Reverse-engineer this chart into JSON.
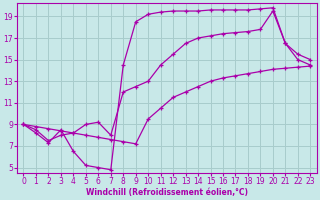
{
  "xlabel": "Windchill (Refroidissement éolien,°C)",
  "background_color": "#c8e8e8",
  "grid_color": "#a8cccc",
  "line_color": "#aa00aa",
  "xlim": [
    -0.5,
    23.5
  ],
  "ylim": [
    4.5,
    20.2
  ],
  "xticks": [
    0,
    1,
    2,
    3,
    4,
    5,
    6,
    7,
    8,
    9,
    10,
    11,
    12,
    13,
    14,
    15,
    16,
    17,
    18,
    19,
    20,
    21,
    22,
    23
  ],
  "yticks": [
    5,
    7,
    9,
    11,
    13,
    15,
    17,
    19
  ],
  "series1_x": [
    0,
    1,
    2,
    3,
    4,
    5,
    6,
    7,
    8,
    9,
    10,
    11,
    12,
    13,
    14,
    15,
    16,
    17,
    18,
    19,
    20,
    21,
    22,
    23
  ],
  "series1_y": [
    9.0,
    8.8,
    8.6,
    8.4,
    8.2,
    8.0,
    7.8,
    7.6,
    7.4,
    7.2,
    9.5,
    10.5,
    11.5,
    12.0,
    12.5,
    13.0,
    13.3,
    13.5,
    13.7,
    13.9,
    14.1,
    14.2,
    14.3,
    14.4
  ],
  "series2_x": [
    0,
    1,
    2,
    3,
    4,
    5,
    6,
    7,
    8,
    9,
    10,
    11,
    12,
    13,
    14,
    15,
    16,
    17,
    18,
    19,
    20,
    21,
    22,
    23
  ],
  "series2_y": [
    9.0,
    8.5,
    7.5,
    8.0,
    8.2,
    9.0,
    9.2,
    8.0,
    12.0,
    12.5,
    13.0,
    14.5,
    15.5,
    16.5,
    17.0,
    17.2,
    17.4,
    17.5,
    17.6,
    17.8,
    19.5,
    16.5,
    15.0,
    14.5
  ],
  "series3_x": [
    0,
    1,
    2,
    3,
    4,
    5,
    6,
    7,
    8,
    9,
    10,
    11,
    12,
    13,
    14,
    15,
    16,
    17,
    18,
    19,
    20,
    21,
    22,
    23
  ],
  "series3_y": [
    9.0,
    8.2,
    7.3,
    8.5,
    6.5,
    5.2,
    5.0,
    4.8,
    14.5,
    18.5,
    19.2,
    19.4,
    19.5,
    19.5,
    19.5,
    19.6,
    19.6,
    19.6,
    19.6,
    19.7,
    19.8,
    16.5,
    15.5,
    15.0
  ]
}
